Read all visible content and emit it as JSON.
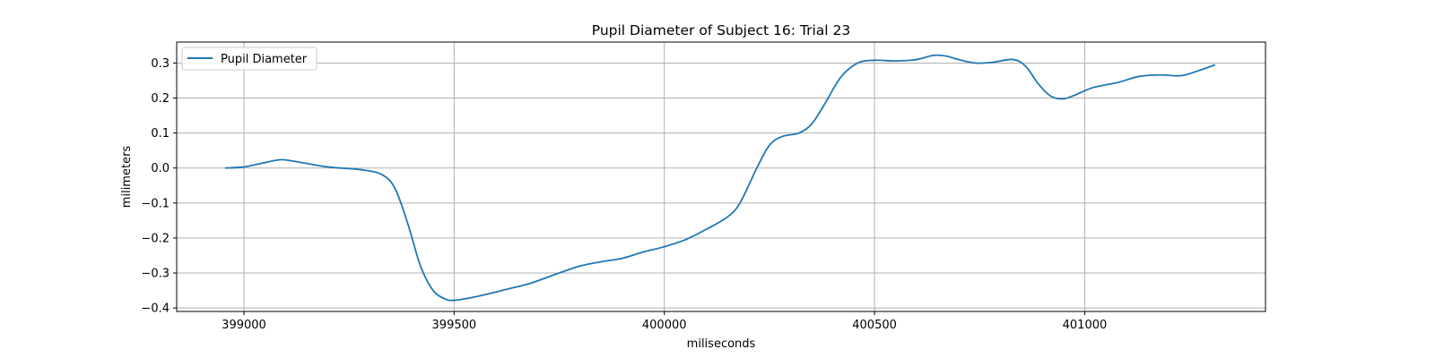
{
  "chart_data": {
    "type": "line",
    "title": "Pupil Diameter of Subject 16: Trial 23",
    "xlabel": "miliseconds",
    "ylabel": "milimeters",
    "xlim": [
      398840,
      401430
    ],
    "ylim": [
      -0.41,
      0.36
    ],
    "xticks": [
      399000,
      399500,
      400000,
      400500,
      401000
    ],
    "yticks": [
      -0.4,
      -0.3,
      -0.2,
      -0.1,
      0.0,
      0.1,
      0.2,
      0.3
    ],
    "ytick_labels": [
      "−0.4",
      "−0.3",
      "−0.2",
      "−0.1",
      "0.0",
      "0.1",
      "0.2",
      "0.3"
    ],
    "grid": true,
    "legend_position": "upper-left",
    "colors": {
      "series": "#1f77b4",
      "grid": "#b0b0b0"
    },
    "series": [
      {
        "name": "Pupil Diameter",
        "x": [
          398955,
          399000,
          399040,
          399080,
          399100,
          399140,
          399200,
          399280,
          399330,
          399360,
          399390,
          399420,
          399450,
          399480,
          399500,
          399530,
          399580,
          399630,
          399680,
          399750,
          399800,
          399850,
          399900,
          399950,
          400000,
          400050,
          400100,
          400150,
          400180,
          400220,
          400250,
          400280,
          400320,
          400350,
          400380,
          400420,
          400460,
          400500,
          400550,
          400600,
          400640,
          400670,
          400700,
          400740,
          400780,
          400830,
          400860,
          400890,
          400920,
          400950,
          400980,
          401020,
          401080,
          401130,
          401180,
          401230,
          401270,
          401310
        ],
        "y": [
          0.0,
          0.003,
          0.013,
          0.023,
          0.023,
          0.015,
          0.003,
          -0.005,
          -0.02,
          -0.06,
          -0.16,
          -0.28,
          -0.35,
          -0.375,
          -0.378,
          -0.373,
          -0.36,
          -0.345,
          -0.33,
          -0.3,
          -0.28,
          -0.268,
          -0.258,
          -0.24,
          -0.225,
          -0.205,
          -0.175,
          -0.14,
          -0.1,
          0.0,
          0.065,
          0.09,
          0.1,
          0.125,
          0.18,
          0.26,
          0.3,
          0.308,
          0.306,
          0.31,
          0.322,
          0.32,
          0.31,
          0.3,
          0.302,
          0.31,
          0.29,
          0.24,
          0.205,
          0.198,
          0.21,
          0.23,
          0.245,
          0.262,
          0.266,
          0.264,
          0.278,
          0.295
        ]
      }
    ]
  }
}
